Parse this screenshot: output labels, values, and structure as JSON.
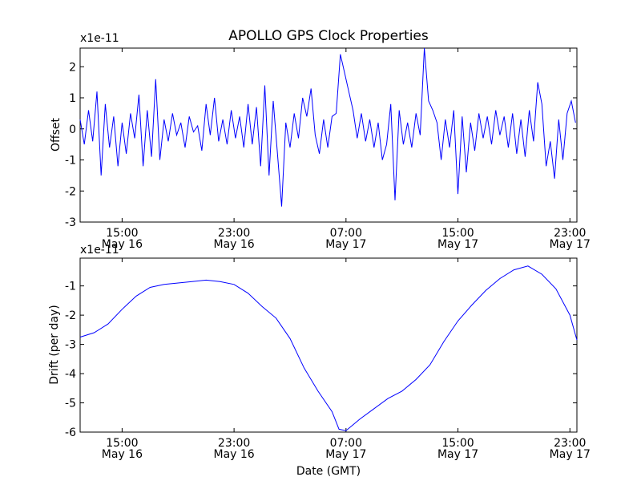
{
  "colors": {
    "line": "#0000ff",
    "axes": "#000000",
    "background": "#ffffff"
  },
  "shared_xticks": [
    {
      "hour": 15,
      "time": "15:00",
      "date": "May 16"
    },
    {
      "hour": 23,
      "time": "23:00",
      "date": "May 16"
    },
    {
      "hour": 31,
      "time": "07:00",
      "date": "May 17"
    },
    {
      "hour": 39,
      "time": "15:00",
      "date": "May 17"
    },
    {
      "hour": 47,
      "time": "23:00",
      "date": "May 17"
    }
  ],
  "chart_data": [
    {
      "type": "line",
      "title": "APOLLO GPS Clock Properties",
      "ylabel": "Offset",
      "xlabel": "",
      "scale_label": "x1e-11",
      "x_unit": "hours since May 16 00:00 GMT",
      "xlim": [
        12,
        47.5
      ],
      "ylim": [
        -3,
        2.6
      ],
      "yticks": [
        -3,
        -2,
        -1,
        0,
        1,
        2
      ],
      "series": [
        {
          "name": "Offset",
          "x": [
            12.0,
            12.3,
            12.6,
            12.9,
            13.2,
            13.5,
            13.8,
            14.1,
            14.4,
            14.7,
            15.0,
            15.3,
            15.6,
            15.9,
            16.2,
            16.5,
            16.8,
            17.1,
            17.4,
            17.7,
            18.0,
            18.3,
            18.6,
            18.9,
            19.2,
            19.5,
            19.8,
            20.1,
            20.4,
            20.7,
            21.0,
            21.3,
            21.6,
            21.9,
            22.2,
            22.5,
            22.8,
            23.1,
            23.4,
            23.7,
            24.0,
            24.3,
            24.6,
            24.9,
            25.2,
            25.5,
            25.8,
            26.1,
            26.4,
            26.7,
            27.0,
            27.3,
            27.6,
            27.9,
            28.2,
            28.5,
            28.8,
            29.1,
            29.4,
            29.7,
            30.0,
            30.3,
            30.6,
            30.9,
            31.2,
            31.5,
            31.8,
            32.1,
            32.4,
            32.7,
            33.0,
            33.3,
            33.6,
            33.9,
            34.2,
            34.5,
            34.8,
            35.1,
            35.4,
            35.7,
            36.0,
            36.3,
            36.6,
            36.9,
            37.2,
            37.5,
            37.8,
            38.1,
            38.4,
            38.7,
            39.0,
            39.3,
            39.6,
            39.9,
            40.2,
            40.5,
            40.8,
            41.1,
            41.4,
            41.7,
            42.0,
            42.3,
            42.6,
            42.9,
            43.2,
            43.5,
            43.8,
            44.1,
            44.4,
            44.7,
            45.0,
            45.3,
            45.6,
            45.9,
            46.2,
            46.5,
            46.8,
            47.1,
            47.4
          ],
          "values": [
            0.3,
            -0.5,
            0.6,
            -0.4,
            1.2,
            -1.5,
            0.8,
            -0.6,
            0.4,
            -1.2,
            0.2,
            -0.8,
            0.5,
            -0.3,
            1.1,
            -1.2,
            0.6,
            -0.9,
            1.6,
            -1.0,
            0.3,
            -0.4,
            0.5,
            -0.2,
            0.2,
            -0.6,
            0.4,
            -0.1,
            0.1,
            -0.7,
            0.8,
            -0.2,
            1.0,
            -0.4,
            0.3,
            -0.5,
            0.6,
            -0.3,
            0.4,
            -0.6,
            0.8,
            -0.5,
            0.7,
            -1.2,
            1.4,
            -1.5,
            0.9,
            -0.8,
            -2.5,
            0.2,
            -0.6,
            0.5,
            -0.3,
            1.0,
            0.4,
            1.3,
            -0.2,
            -0.8,
            0.3,
            -0.6,
            0.4,
            0.5,
            2.4,
            1.8,
            1.2,
            0.6,
            -0.3,
            0.5,
            -0.4,
            0.3,
            -0.6,
            0.2,
            -1.0,
            -0.5,
            0.8,
            -2.3,
            0.6,
            -0.5,
            0.2,
            -0.6,
            0.5,
            -0.2,
            2.6,
            0.9,
            0.6,
            0.2,
            -1.0,
            0.3,
            -0.6,
            0.6,
            -2.1,
            0.4,
            -1.4,
            0.2,
            -0.7,
            0.5,
            -0.3,
            0.4,
            -0.5,
            0.6,
            -0.2,
            0.4,
            -0.6,
            0.5,
            -0.8,
            0.3,
            -0.9,
            0.6,
            -0.4,
            1.5,
            0.8,
            -1.2,
            -0.4,
            -1.6,
            0.3,
            -1.0,
            0.5,
            0.9,
            0.2
          ]
        }
      ]
    },
    {
      "type": "line",
      "title": "",
      "ylabel": "Drift (per day)",
      "xlabel": "Date (GMT)",
      "scale_label": "x1e-11",
      "x_unit": "hours since May 16 00:00 GMT",
      "xlim": [
        12,
        47.5
      ],
      "ylim": [
        -6,
        -0.05
      ],
      "yticks": [
        -6,
        -5,
        -4,
        -3,
        -2,
        -1
      ],
      "series": [
        {
          "name": "Drift",
          "x": [
            12.0,
            13.0,
            14.0,
            15.0,
            16.0,
            17.0,
            18.0,
            19.0,
            20.0,
            21.0,
            22.0,
            23.0,
            24.0,
            25.0,
            26.0,
            27.0,
            28.0,
            29.0,
            30.0,
            30.5,
            31.0,
            32.0,
            33.0,
            34.0,
            35.0,
            36.0,
            37.0,
            38.0,
            39.0,
            40.0,
            41.0,
            42.0,
            43.0,
            44.0,
            45.0,
            46.0,
            47.0,
            47.5
          ],
          "values": [
            -2.75,
            -2.6,
            -2.3,
            -1.8,
            -1.35,
            -1.05,
            -0.95,
            -0.9,
            -0.85,
            -0.8,
            -0.85,
            -0.95,
            -1.25,
            -1.7,
            -2.1,
            -2.8,
            -3.8,
            -4.6,
            -5.3,
            -5.9,
            -5.95,
            -5.55,
            -5.2,
            -4.85,
            -4.6,
            -4.2,
            -3.7,
            -2.9,
            -2.2,
            -1.65,
            -1.15,
            -0.75,
            -0.45,
            -0.32,
            -0.6,
            -1.1,
            -2.0,
            -2.85
          ]
        }
      ]
    }
  ]
}
